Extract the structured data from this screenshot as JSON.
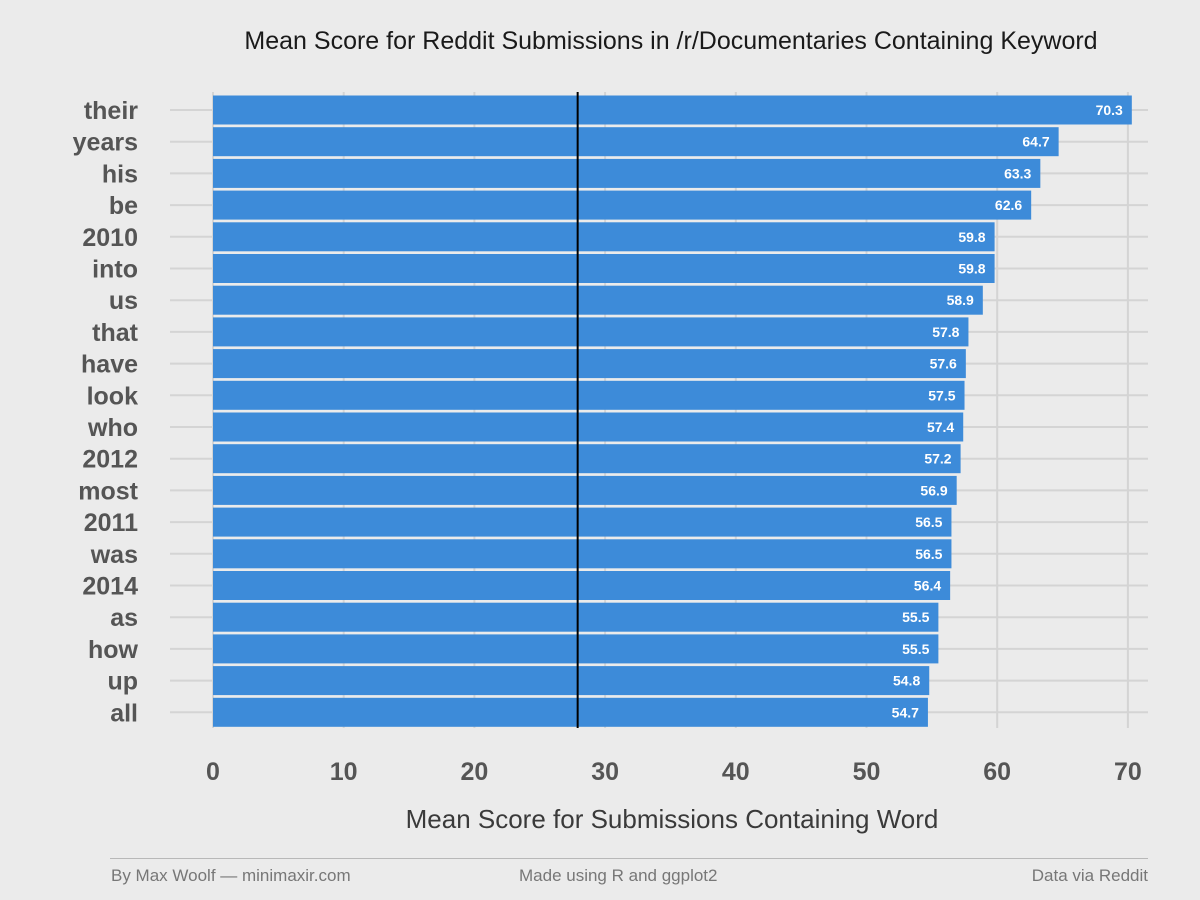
{
  "chart_data": {
    "type": "bar",
    "orientation": "horizontal",
    "title": "Mean Score for Reddit Submissions in /r/Documentaries Containing Keyword",
    "xlabel": "Mean Score for Submissions Containing Word",
    "ylabel": "",
    "categories": [
      "their",
      "years",
      "his",
      "be",
      "2010",
      "into",
      "us",
      "that",
      "have",
      "look",
      "who",
      "2012",
      "most",
      "2011",
      "was",
      "2014",
      "as",
      "how",
      "up",
      "all"
    ],
    "values": [
      70.3,
      64.7,
      63.3,
      62.6,
      59.8,
      59.8,
      58.9,
      57.8,
      57.6,
      57.5,
      57.4,
      57.2,
      56.9,
      56.5,
      56.5,
      56.4,
      55.5,
      55.5,
      54.8,
      54.7
    ],
    "data_labels": [
      "70.3",
      "64.7",
      "63.3",
      "62.6",
      "59.8",
      "59.8",
      "58.9",
      "57.8",
      "57.6",
      "57.5",
      "57.4",
      "57.2",
      "56.9",
      "56.5",
      "56.5",
      "56.4",
      "55.5",
      "55.5",
      "54.8",
      "54.7"
    ],
    "xticks": [
      0,
      10,
      20,
      30,
      40,
      50,
      60,
      70
    ],
    "xtick_labels": [
      "0",
      "10",
      "20",
      "30",
      "40",
      "50",
      "60",
      "70"
    ],
    "xlim": [
      0,
      71.5
    ],
    "reference_line_x": 27.9,
    "grid": true,
    "bar_color": "#3d8bd9",
    "background_color": "#ebebeb",
    "grid_color": "#d4d4d4"
  },
  "footer": {
    "left": "By Max Woolf — minimaxir.com",
    "center": "Made using R and ggplot2",
    "right": "Data via Reddit"
  }
}
